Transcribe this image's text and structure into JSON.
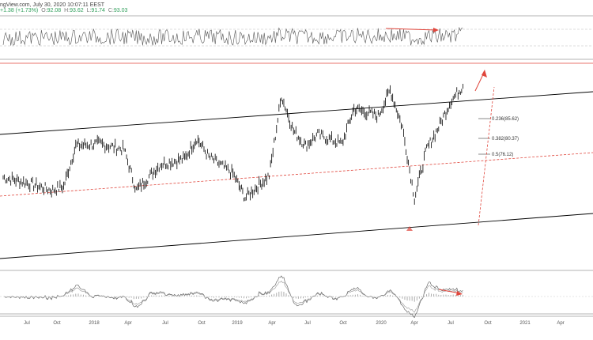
{
  "header": {
    "source_fragment": "ngView.com, July 30, 2020 10:07:11 EEST",
    "change": "+1.38 (+1.73%)",
    "open_label": "O:",
    "open_value": "92.08",
    "high_label": "H:",
    "high_value": "93.62",
    "low_label": "L:",
    "low_value": "91.74",
    "close_label": "C:",
    "close_value": "93.03"
  },
  "chart_data": {
    "type": "line",
    "title": "",
    "xlabel": "",
    "ylabel": "",
    "x_ticks": [
      "Jul",
      "Oct",
      "2018",
      "Apr",
      "Jul",
      "Oct",
      "2019",
      "Apr",
      "Jul",
      "Oct",
      "2020",
      "Apr",
      "Jul",
      "Oct",
      "2021",
      "Apr"
    ],
    "series": [
      {
        "x": [
          "2017-05",
          "2017-07",
          "2017-09",
          "2017-10",
          "2017-11",
          "2018-01",
          "2018-03",
          "2018-04",
          "2018-06",
          "2018-08",
          "2018-09",
          "2018-10",
          "2018-12",
          "2019-01",
          "2019-03",
          "2019-04",
          "2019-05",
          "2019-06",
          "2019-07",
          "2019-09",
          "2019-10",
          "2019-12",
          "2020-01",
          "2020-02",
          "2020-03",
          "2020-04",
          "2020-05",
          "2020-06",
          "2020-07"
        ],
        "values": [
          0.45,
          0.42,
          0.38,
          0.4,
          0.62,
          0.63,
          0.6,
          0.38,
          0.52,
          0.55,
          0.66,
          0.56,
          0.47,
          0.34,
          0.46,
          0.89,
          0.7,
          0.62,
          0.68,
          0.63,
          0.82,
          0.78,
          0.92,
          0.72,
          0.34,
          0.6,
          0.72,
          0.86,
          0.94
        ]
      }
    ],
    "fibonacci_levels": [
      {
        "label": "0.236(85.62)",
        "ratio": 0.236,
        "price": 85.62
      },
      {
        "label": "0.382(80.37)",
        "ratio": 0.382,
        "price": 80.37
      },
      {
        "label": "0.5(76.12)",
        "ratio": 0.5,
        "price": 76.12
      }
    ],
    "grid": false
  },
  "colors": {
    "price": "#000000",
    "channel": "#000000",
    "midline": "#e0463c",
    "annotation": "#e0463c",
    "indicator": "#555555",
    "histogram": "#9a9a9a",
    "divider": "#9a9a9a"
  }
}
